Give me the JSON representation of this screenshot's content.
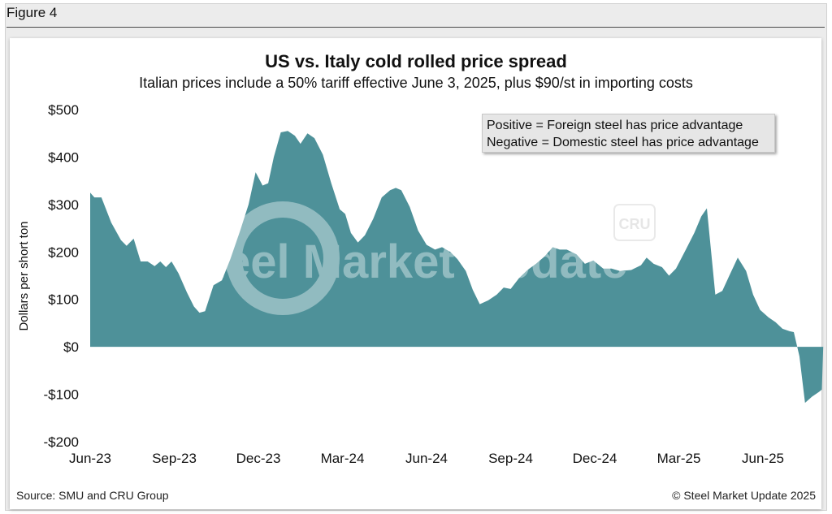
{
  "figure_label": "Figure 4",
  "source": "Source: SMU and CRU Group",
  "copyright": "© Steel Market Update 2025",
  "colors": {
    "area": "#4e9199",
    "watermark": "#ffffff"
  },
  "watermark": {
    "text": "Steel Market Update",
    "badge": "CRU"
  },
  "chart_data": {
    "type": "area",
    "title": "US vs. Italy cold rolled price spread",
    "subtitle": "Italian prices include a 50% tariff effective June 3, 2025, plus $90/st in importing costs",
    "ylabel": "Dollars per short ton",
    "xlabel": "",
    "ylim": [
      -200,
      500
    ],
    "yticks": [
      500,
      400,
      300,
      200,
      100,
      0,
      -100,
      -200
    ],
    "ytick_labels": [
      "$500",
      "$400",
      "$300",
      "$200",
      "$100",
      "$0",
      "-$100",
      "-$200"
    ],
    "xticks": [
      "Jun-23",
      "Sep-23",
      "Dec-23",
      "Mar-24",
      "Jun-24",
      "Sep-24",
      "Dec-24",
      "Mar-25",
      "Jun-25"
    ],
    "x_unit": "months since Jun-23",
    "legend": [
      "Positive = Foreign steel has price advantage",
      "Negative = Domestic steel has price advantage"
    ],
    "legend_position": "top-right",
    "grid": false,
    "points": [
      [
        0.0,
        325
      ],
      [
        0.15,
        315
      ],
      [
        0.4,
        315
      ],
      [
        0.75,
        262
      ],
      [
        1.1,
        225
      ],
      [
        1.3,
        213
      ],
      [
        1.55,
        228
      ],
      [
        1.8,
        180
      ],
      [
        2.05,
        180
      ],
      [
        2.3,
        170
      ],
      [
        2.5,
        180
      ],
      [
        2.7,
        168
      ],
      [
        2.9,
        180
      ],
      [
        3.15,
        155
      ],
      [
        3.45,
        115
      ],
      [
        3.7,
        85
      ],
      [
        3.9,
        72
      ],
      [
        4.1,
        75
      ],
      [
        4.4,
        130
      ],
      [
        4.7,
        140
      ],
      [
        5.0,
        185
      ],
      [
        5.35,
        245
      ],
      [
        5.65,
        300
      ],
      [
        5.9,
        368
      ],
      [
        6.15,
        340
      ],
      [
        6.35,
        345
      ],
      [
        6.55,
        400
      ],
      [
        6.8,
        452
      ],
      [
        7.05,
        455
      ],
      [
        7.3,
        445
      ],
      [
        7.5,
        428
      ],
      [
        7.75,
        450
      ],
      [
        8.0,
        440
      ],
      [
        8.3,
        405
      ],
      [
        8.6,
        345
      ],
      [
        8.9,
        290
      ],
      [
        9.1,
        280
      ],
      [
        9.3,
        240
      ],
      [
        9.55,
        220
      ],
      [
        9.8,
        235
      ],
      [
        10.1,
        270
      ],
      [
        10.4,
        315
      ],
      [
        10.7,
        330
      ],
      [
        10.9,
        335
      ],
      [
        11.1,
        330
      ],
      [
        11.4,
        295
      ],
      [
        11.7,
        245
      ],
      [
        12.0,
        215
      ],
      [
        12.3,
        205
      ],
      [
        12.55,
        210
      ],
      [
        12.85,
        200
      ],
      [
        13.1,
        185
      ],
      [
        13.4,
        160
      ],
      [
        13.65,
        120
      ],
      [
        13.9,
        90
      ],
      [
        14.2,
        98
      ],
      [
        14.5,
        110
      ],
      [
        14.75,
        125
      ],
      [
        15.0,
        122
      ],
      [
        15.3,
        145
      ],
      [
        15.6,
        162
      ],
      [
        15.9,
        175
      ],
      [
        16.2,
        190
      ],
      [
        16.5,
        210
      ],
      [
        16.75,
        205
      ],
      [
        17.0,
        205
      ],
      [
        17.35,
        195
      ],
      [
        17.65,
        175
      ],
      [
        17.95,
        182
      ],
      [
        18.3,
        165
      ],
      [
        18.6,
        165
      ],
      [
        18.9,
        160
      ],
      [
        19.3,
        162
      ],
      [
        19.65,
        172
      ],
      [
        19.85,
        188
      ],
      [
        20.1,
        175
      ],
      [
        20.4,
        168
      ],
      [
        20.65,
        150
      ],
      [
        20.9,
        165
      ],
      [
        21.25,
        205
      ],
      [
        21.55,
        240
      ],
      [
        21.8,
        275
      ],
      [
        22.0,
        292
      ],
      [
        22.3,
        110
      ],
      [
        22.55,
        118
      ],
      [
        22.8,
        150
      ],
      [
        23.1,
        188
      ],
      [
        23.4,
        160
      ],
      [
        23.65,
        110
      ],
      [
        23.9,
        78
      ],
      [
        24.2,
        62
      ],
      [
        24.45,
        52
      ],
      [
        24.7,
        38
      ],
      [
        24.95,
        33
      ],
      [
        25.1,
        31
      ],
      [
        25.3,
        -20
      ],
      [
        25.5,
        -118
      ],
      [
        25.75,
        -105
      ],
      [
        26.0,
        -95
      ],
      [
        26.1,
        -90
      ],
      [
        26.15,
        0
      ]
    ]
  }
}
